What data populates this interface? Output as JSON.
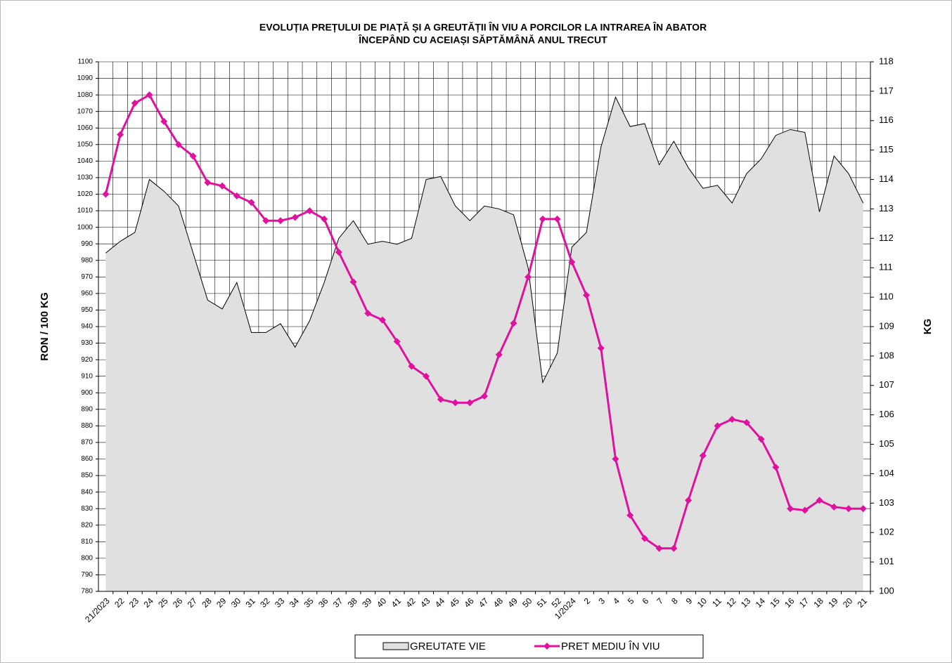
{
  "chart_data": {
    "type": "line",
    "title": "EVOLUȚIA PREȚULUI DE PIAȚĂ ȘI A GREUTĂȚII  ÎN VIU A PORCILOR LA INTRAREA  ÎN ABATOR",
    "subtitle": "ÎNCEPÂND  CU ACEIAȘI SĂPTĂMÂNĂ ANUL TRECUT",
    "ylabel": "RON / 100 KG",
    "y2label": "KG",
    "categories": [
      "21/2023",
      "22",
      "23",
      "24",
      "25",
      "26",
      "27",
      "28",
      "29",
      "30",
      "31",
      "32",
      "33",
      "34",
      "35",
      "36",
      "37",
      "38",
      "39",
      "40",
      "41",
      "42",
      "43",
      "44",
      "45",
      "46",
      "47",
      "48",
      "49",
      "50",
      "51",
      "52",
      "1/2024",
      "2",
      "3",
      "4",
      "5",
      "6",
      "7",
      "8",
      "9",
      "10",
      "11",
      "12",
      "13",
      "14",
      "15",
      "16",
      "17",
      "18",
      "19",
      "20",
      "21"
    ],
    "series": [
      {
        "name": "GREUTATE VIE",
        "type": "area",
        "axis": "y2",
        "color": "#e0e0e0",
        "values": [
          111.5,
          111.9,
          112.2,
          114.0,
          113.6,
          113.1,
          111.5,
          109.9,
          109.6,
          110.5,
          108.8,
          108.8,
          109.1,
          108.3,
          109.2,
          110.5,
          112.0,
          112.6,
          111.8,
          111.9,
          111.8,
          112.0,
          114.0,
          114.1,
          113.1,
          112.6,
          113.1,
          113.0,
          112.8,
          111.0,
          107.1,
          108.1,
          111.7,
          112.2,
          115.1,
          116.8,
          115.8,
          115.9,
          114.5,
          115.3,
          114.4,
          113.7,
          113.8,
          113.2,
          114.2,
          114.7,
          115.5,
          115.7,
          115.6,
          112.9,
          114.8,
          114.2,
          113.2
        ]
      },
      {
        "name": "PRET MEDIU ÎN VIU",
        "type": "line",
        "color": "#e0119e",
        "values": [
          1020,
          1056,
          1075,
          1080,
          1064,
          1050,
          1043,
          1027,
          1025,
          1019,
          1015,
          1004,
          1004,
          1006,
          1010,
          1005,
          985,
          967,
          948,
          944,
          931,
          916,
          910,
          896,
          894,
          894,
          898,
          923,
          942,
          970,
          1005,
          1005,
          979,
          959,
          927,
          860,
          826,
          812,
          806,
          806,
          835,
          862,
          880,
          884,
          882,
          872,
          855,
          830,
          829,
          835,
          831,
          830,
          830
        ]
      }
    ],
    "ylim": [
      780,
      1100
    ],
    "yticks": [
      780,
      790,
      800,
      810,
      820,
      830,
      840,
      850,
      860,
      870,
      880,
      890,
      900,
      910,
      920,
      930,
      940,
      950,
      960,
      970,
      980,
      990,
      1000,
      1010,
      1020,
      1030,
      1040,
      1050,
      1060,
      1070,
      1080,
      1090,
      1100
    ],
    "y2lim": [
      100,
      118
    ],
    "y2ticks": [
      100,
      101,
      102,
      103,
      104,
      105,
      106,
      107,
      108,
      109,
      110,
      111,
      112,
      113,
      114,
      115,
      116,
      117,
      118
    ],
    "grid": true,
    "legend": "bottom"
  }
}
